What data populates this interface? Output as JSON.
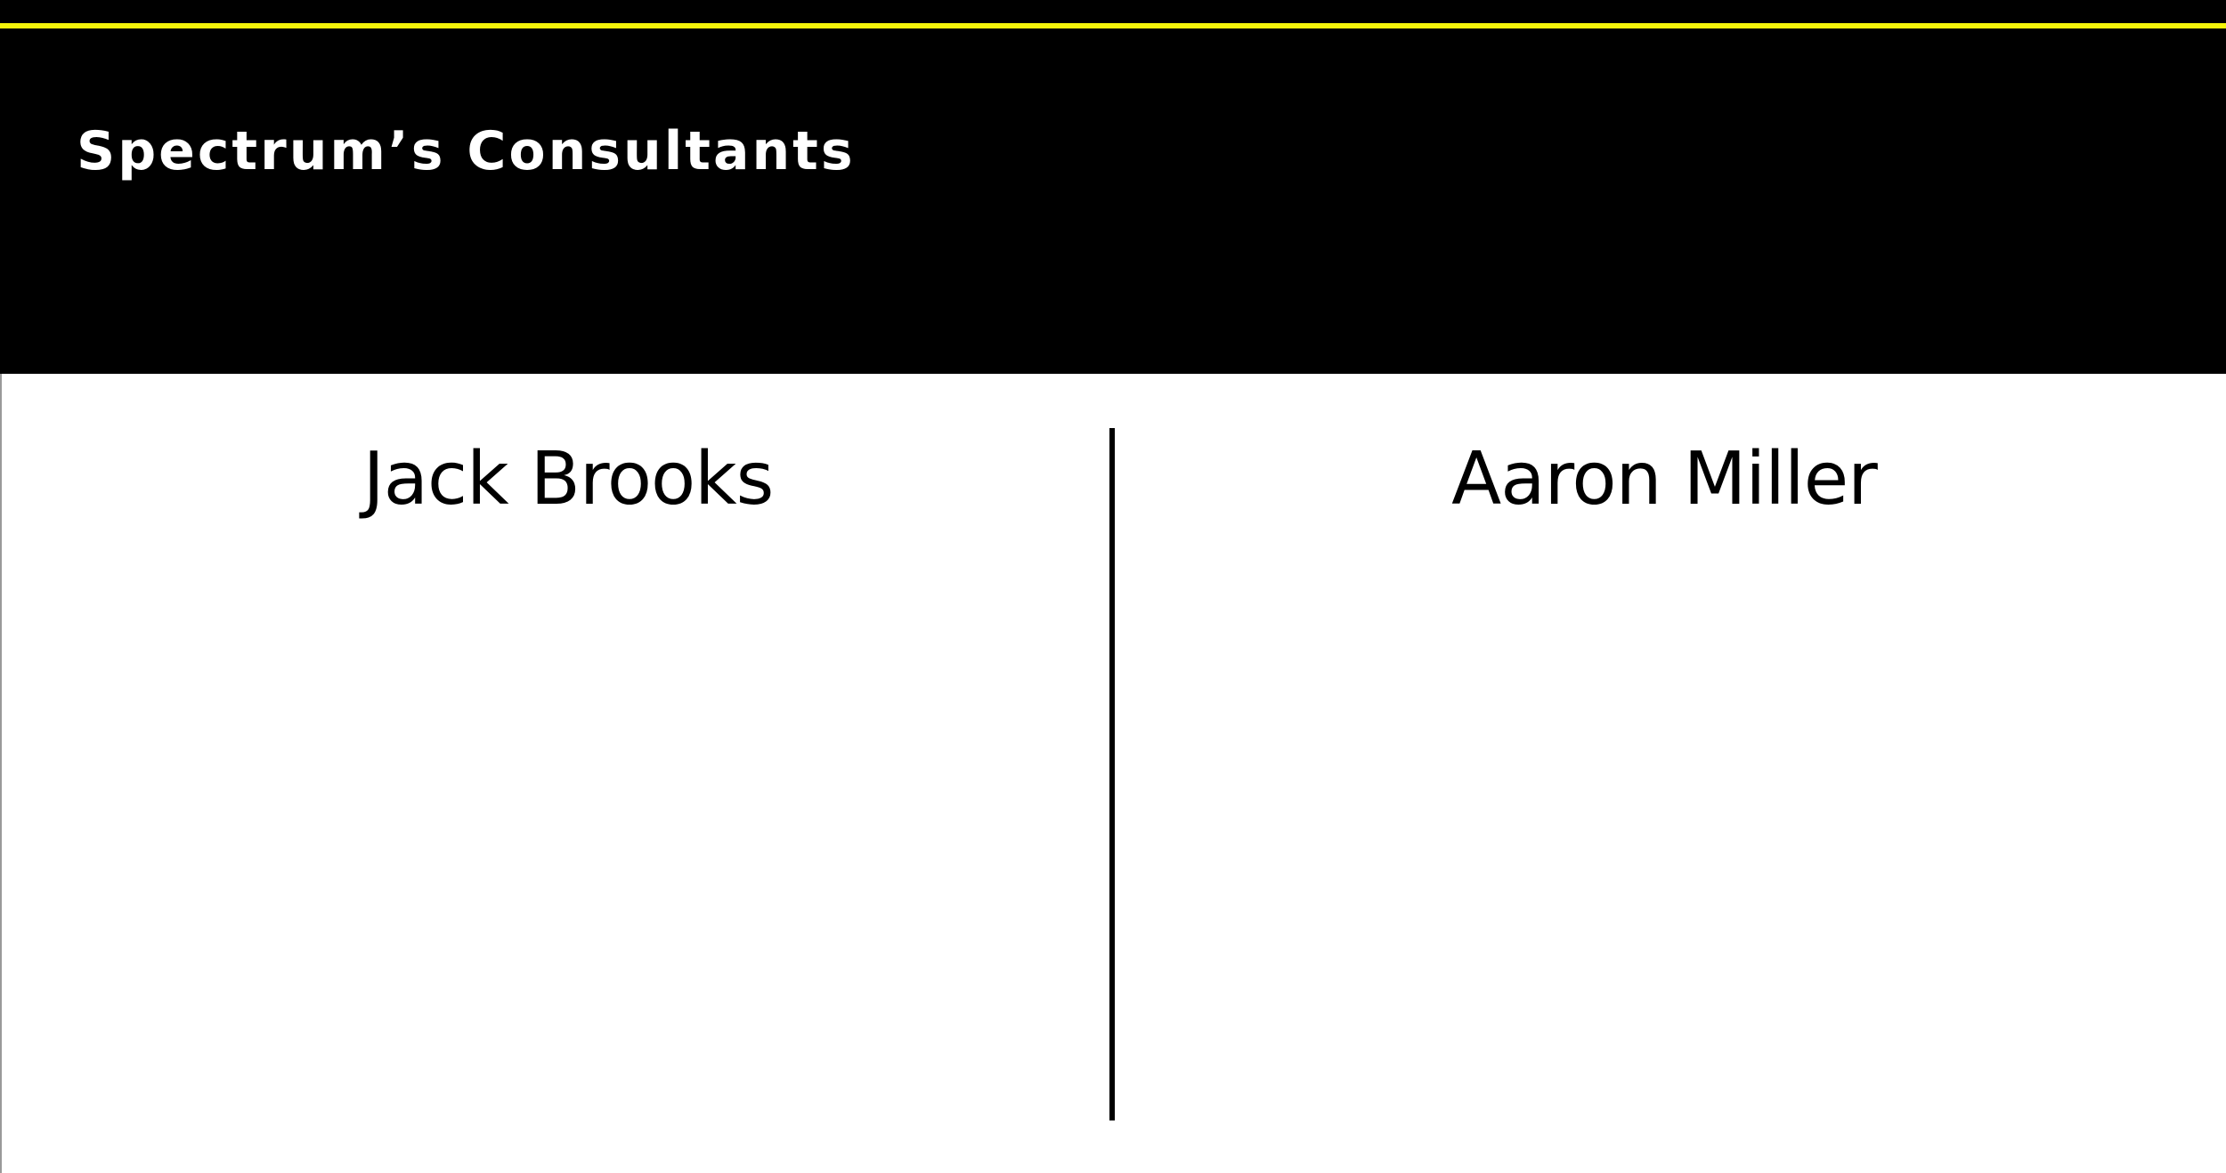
{
  "slide": {
    "title": "Spectrum’s Consultants",
    "columns": [
      {
        "heading": "Jack Brooks"
      },
      {
        "heading": "Aaron Miller"
      }
    ]
  },
  "colors": {
    "header_background": "#000000",
    "accent_line": "#f5f50a",
    "title_text": "#ffffff",
    "body_background": "#ffffff",
    "heading_text": "#000000",
    "divider": "#000000"
  }
}
